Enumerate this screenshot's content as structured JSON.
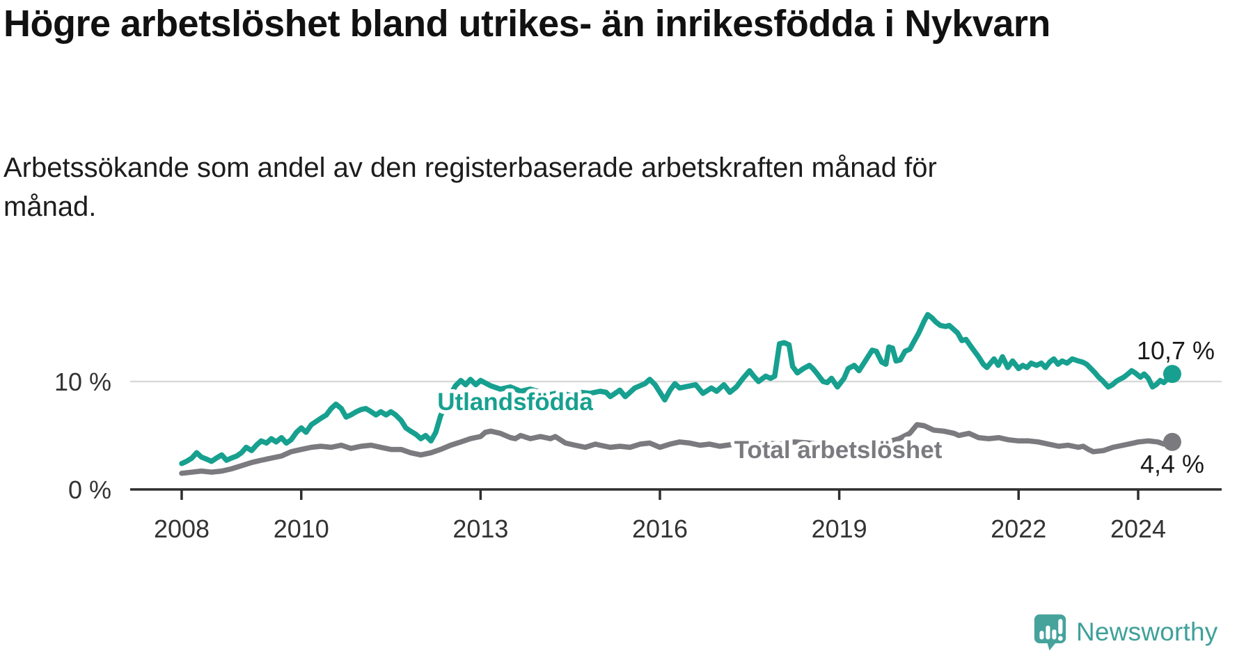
{
  "title": "Högre arbetslöshet bland utrikes- än inrikesfödda i Nykvarn",
  "subtitle": "Arbetssökande som andel av den registerbaserade arbetskraften månad för månad.",
  "branding": {
    "logo_text": "Newsworthy",
    "logo_color": "#3FA09A"
  },
  "colors": {
    "foreign_born_line": "#17A08F",
    "total_line": "#7A7A7F",
    "axis": "#2e2e2e",
    "gridline": "#d9d9d9",
    "text_dark": "#1a1a1a"
  },
  "chart_data": {
    "type": "line",
    "title": "Högre arbetslöshet bland utrikes- än inrikesfödda i Nykvarn",
    "subtitle": "Arbetssökande som andel av den registerbaserade arbetskraften månad för månad.",
    "xlabel": "",
    "ylabel": "",
    "x_range": [
      2007.9,
      2025.3
    ],
    "y_range": [
      0,
      18
    ],
    "grid": "single horizontal gridline at 10 %",
    "gridlines": [
      10
    ],
    "x_axis": {
      "ticks": [
        2008,
        2010,
        2013,
        2016,
        2019,
        2022,
        2024
      ]
    },
    "y_axis": {
      "ticks": [
        {
          "value": 0,
          "label": "0 %"
        },
        {
          "value": 10,
          "label": "10 %"
        }
      ]
    },
    "legend_position": "inline labels on lines",
    "series": [
      {
        "name": "Total arbetslöshet",
        "color": "#7A7A7F",
        "end_value": 4.4,
        "end_label": "4,4 %",
        "points": [
          [
            2008.0,
            1.5
          ],
          [
            2008.17,
            1.6
          ],
          [
            2008.33,
            1.7
          ],
          [
            2008.5,
            1.6
          ],
          [
            2008.67,
            1.7
          ],
          [
            2008.83,
            1.9
          ],
          [
            2009.0,
            2.2
          ],
          [
            2009.17,
            2.5
          ],
          [
            2009.33,
            2.7
          ],
          [
            2009.5,
            2.9
          ],
          [
            2009.67,
            3.1
          ],
          [
            2009.83,
            3.5
          ],
          [
            2010.0,
            3.7
          ],
          [
            2010.17,
            3.9
          ],
          [
            2010.33,
            4.0
          ],
          [
            2010.5,
            3.9
          ],
          [
            2010.67,
            4.1
          ],
          [
            2010.83,
            3.8
          ],
          [
            2011.0,
            4.0
          ],
          [
            2011.17,
            4.1
          ],
          [
            2011.33,
            3.9
          ],
          [
            2011.5,
            3.7
          ],
          [
            2011.67,
            3.7
          ],
          [
            2011.83,
            3.4
          ],
          [
            2012.0,
            3.2
          ],
          [
            2012.17,
            3.4
          ],
          [
            2012.33,
            3.7
          ],
          [
            2012.5,
            4.1
          ],
          [
            2012.67,
            4.4
          ],
          [
            2012.83,
            4.7
          ],
          [
            2013.0,
            4.9
          ],
          [
            2013.08,
            5.3
          ],
          [
            2013.17,
            5.4
          ],
          [
            2013.33,
            5.2
          ],
          [
            2013.5,
            4.8
          ],
          [
            2013.58,
            4.7
          ],
          [
            2013.67,
            5.0
          ],
          [
            2013.83,
            4.7
          ],
          [
            2014.0,
            4.9
          ],
          [
            2014.17,
            4.7
          ],
          [
            2014.25,
            4.9
          ],
          [
            2014.42,
            4.3
          ],
          [
            2014.58,
            4.1
          ],
          [
            2014.75,
            3.9
          ],
          [
            2014.92,
            4.2
          ],
          [
            2015.0,
            4.1
          ],
          [
            2015.17,
            3.9
          ],
          [
            2015.33,
            4.0
          ],
          [
            2015.5,
            3.9
          ],
          [
            2015.67,
            4.2
          ],
          [
            2015.83,
            4.3
          ],
          [
            2016.0,
            3.9
          ],
          [
            2016.17,
            4.2
          ],
          [
            2016.33,
            4.4
          ],
          [
            2016.5,
            4.3
          ],
          [
            2016.67,
            4.1
          ],
          [
            2016.83,
            4.2
          ],
          [
            2017.0,
            4.0
          ],
          [
            2017.25,
            4.2
          ],
          [
            2017.5,
            4.1
          ],
          [
            2017.75,
            4.3
          ],
          [
            2018.0,
            4.2
          ],
          [
            2018.25,
            4.4
          ],
          [
            2018.5,
            4.3
          ],
          [
            2018.75,
            4.1
          ],
          [
            2019.0,
            4.0
          ],
          [
            2019.25,
            4.2
          ],
          [
            2019.5,
            4.1
          ],
          [
            2019.75,
            4.3
          ],
          [
            2020.0,
            4.7
          ],
          [
            2020.18,
            5.2
          ],
          [
            2020.3,
            6.0
          ],
          [
            2020.42,
            5.9
          ],
          [
            2020.58,
            5.5
          ],
          [
            2020.75,
            5.4
          ],
          [
            2020.92,
            5.2
          ],
          [
            2021.0,
            5.0
          ],
          [
            2021.17,
            5.2
          ],
          [
            2021.33,
            4.8
          ],
          [
            2021.5,
            4.7
          ],
          [
            2021.67,
            4.8
          ],
          [
            2021.83,
            4.6
          ],
          [
            2022.0,
            4.5
          ],
          [
            2022.17,
            4.5
          ],
          [
            2022.33,
            4.4
          ],
          [
            2022.5,
            4.2
          ],
          [
            2022.67,
            4.0
          ],
          [
            2022.83,
            4.1
          ],
          [
            2023.0,
            3.9
          ],
          [
            2023.08,
            4.0
          ],
          [
            2023.17,
            3.7
          ],
          [
            2023.25,
            3.5
          ],
          [
            2023.42,
            3.6
          ],
          [
            2023.58,
            3.9
          ],
          [
            2023.75,
            4.1
          ],
          [
            2023.92,
            4.3
          ],
          [
            2024.0,
            4.4
          ],
          [
            2024.17,
            4.5
          ],
          [
            2024.33,
            4.4
          ],
          [
            2024.43,
            4.2
          ],
          [
            2024.57,
            4.4
          ]
        ]
      },
      {
        "name": "Utlandsfödda",
        "color": "#17A08F",
        "end_value": 10.7,
        "end_label": "10,7 %",
        "points": [
          [
            2008.0,
            2.4
          ],
          [
            2008.08,
            2.6
          ],
          [
            2008.17,
            2.9
          ],
          [
            2008.25,
            3.4
          ],
          [
            2008.33,
            3.0
          ],
          [
            2008.42,
            2.8
          ],
          [
            2008.5,
            2.6
          ],
          [
            2008.58,
            2.9
          ],
          [
            2008.67,
            3.2
          ],
          [
            2008.75,
            2.7
          ],
          [
            2008.83,
            2.9
          ],
          [
            2008.92,
            3.1
          ],
          [
            2009.0,
            3.4
          ],
          [
            2009.08,
            3.9
          ],
          [
            2009.17,
            3.6
          ],
          [
            2009.25,
            4.1
          ],
          [
            2009.33,
            4.5
          ],
          [
            2009.42,
            4.3
          ],
          [
            2009.5,
            4.7
          ],
          [
            2009.58,
            4.4
          ],
          [
            2009.67,
            4.8
          ],
          [
            2009.75,
            4.3
          ],
          [
            2009.83,
            4.6
          ],
          [
            2009.92,
            5.3
          ],
          [
            2010.0,
            5.7
          ],
          [
            2010.08,
            5.3
          ],
          [
            2010.17,
            6.0
          ],
          [
            2010.25,
            6.3
          ],
          [
            2010.33,
            6.6
          ],
          [
            2010.42,
            6.9
          ],
          [
            2010.5,
            7.5
          ],
          [
            2010.58,
            7.9
          ],
          [
            2010.67,
            7.5
          ],
          [
            2010.75,
            6.7
          ],
          [
            2010.83,
            6.9
          ],
          [
            2010.92,
            7.2
          ],
          [
            2011.0,
            7.4
          ],
          [
            2011.08,
            7.5
          ],
          [
            2011.17,
            7.2
          ],
          [
            2011.25,
            6.9
          ],
          [
            2011.33,
            7.2
          ],
          [
            2011.42,
            6.9
          ],
          [
            2011.5,
            7.2
          ],
          [
            2011.58,
            6.9
          ],
          [
            2011.67,
            6.4
          ],
          [
            2011.75,
            5.7
          ],
          [
            2011.83,
            5.4
          ],
          [
            2011.92,
            5.1
          ],
          [
            2012.0,
            4.7
          ],
          [
            2012.08,
            5.0
          ],
          [
            2012.17,
            4.5
          ],
          [
            2012.25,
            5.3
          ],
          [
            2012.33,
            6.8
          ],
          [
            2012.42,
            7.9
          ],
          [
            2012.5,
            8.8
          ],
          [
            2012.58,
            9.6
          ],
          [
            2012.67,
            10.1
          ],
          [
            2012.75,
            9.7
          ],
          [
            2012.83,
            10.2
          ],
          [
            2012.92,
            9.7
          ],
          [
            2013.0,
            10.1
          ],
          [
            2013.17,
            9.6
          ],
          [
            2013.33,
            9.3
          ],
          [
            2013.5,
            9.5
          ],
          [
            2013.67,
            9.1
          ],
          [
            2013.83,
            9.3
          ],
          [
            2014.0,
            9.0
          ],
          [
            2014.17,
            8.8
          ],
          [
            2014.33,
            9.0
          ],
          [
            2014.5,
            8.7
          ],
          [
            2014.67,
            9.0
          ],
          [
            2014.83,
            8.9
          ],
          [
            2015.0,
            9.1
          ],
          [
            2015.1,
            9.0
          ],
          [
            2015.17,
            8.6
          ],
          [
            2015.25,
            8.9
          ],
          [
            2015.33,
            9.2
          ],
          [
            2015.42,
            8.6
          ],
          [
            2015.5,
            9.0
          ],
          [
            2015.58,
            9.4
          ],
          [
            2015.75,
            9.8
          ],
          [
            2015.83,
            10.2
          ],
          [
            2015.92,
            9.7
          ],
          [
            2016.08,
            8.3
          ],
          [
            2016.17,
            9.2
          ],
          [
            2016.25,
            9.8
          ],
          [
            2016.33,
            9.4
          ],
          [
            2016.6,
            9.7
          ],
          [
            2016.72,
            8.9
          ],
          [
            2016.86,
            9.4
          ],
          [
            2016.95,
            9.1
          ],
          [
            2017.07,
            9.7
          ],
          [
            2017.17,
            9.0
          ],
          [
            2017.28,
            9.5
          ],
          [
            2017.39,
            10.3
          ],
          [
            2017.5,
            11.0
          ],
          [
            2017.57,
            10.5
          ],
          [
            2017.65,
            10.0
          ],
          [
            2017.77,
            10.5
          ],
          [
            2017.85,
            10.3
          ],
          [
            2017.92,
            10.5
          ],
          [
            2018.0,
            13.5
          ],
          [
            2018.08,
            13.6
          ],
          [
            2018.16,
            13.4
          ],
          [
            2018.22,
            11.4
          ],
          [
            2018.3,
            10.8
          ],
          [
            2018.4,
            11.2
          ],
          [
            2018.5,
            11.5
          ],
          [
            2018.56,
            11.2
          ],
          [
            2018.62,
            10.8
          ],
          [
            2018.73,
            10.0
          ],
          [
            2018.8,
            9.9
          ],
          [
            2018.87,
            10.3
          ],
          [
            2018.97,
            9.5
          ],
          [
            2019.08,
            10.3
          ],
          [
            2019.15,
            11.2
          ],
          [
            2019.25,
            11.5
          ],
          [
            2019.33,
            11.0
          ],
          [
            2019.4,
            11.6
          ],
          [
            2019.55,
            12.9
          ],
          [
            2019.62,
            12.8
          ],
          [
            2019.71,
            11.8
          ],
          [
            2019.78,
            11.6
          ],
          [
            2019.83,
            13.2
          ],
          [
            2019.89,
            13.1
          ],
          [
            2019.95,
            11.9
          ],
          [
            2020.02,
            12.0
          ],
          [
            2020.1,
            12.8
          ],
          [
            2020.18,
            13.0
          ],
          [
            2020.25,
            13.7
          ],
          [
            2020.33,
            14.5
          ],
          [
            2020.42,
            15.6
          ],
          [
            2020.48,
            16.2
          ],
          [
            2020.55,
            15.9
          ],
          [
            2020.62,
            15.5
          ],
          [
            2020.69,
            15.2
          ],
          [
            2020.78,
            15.1
          ],
          [
            2020.84,
            15.2
          ],
          [
            2020.92,
            14.8
          ],
          [
            2020.98,
            14.5
          ],
          [
            2021.05,
            13.8
          ],
          [
            2021.12,
            13.9
          ],
          [
            2021.21,
            13.2
          ],
          [
            2021.33,
            12.3
          ],
          [
            2021.41,
            11.6
          ],
          [
            2021.47,
            11.3
          ],
          [
            2021.59,
            12.1
          ],
          [
            2021.66,
            11.5
          ],
          [
            2021.73,
            12.3
          ],
          [
            2021.82,
            11.3
          ],
          [
            2021.9,
            11.9
          ],
          [
            2022.0,
            11.2
          ],
          [
            2022.07,
            11.5
          ],
          [
            2022.14,
            11.3
          ],
          [
            2022.21,
            11.7
          ],
          [
            2022.3,
            11.5
          ],
          [
            2022.38,
            11.7
          ],
          [
            2022.45,
            11.3
          ],
          [
            2022.52,
            11.8
          ],
          [
            2022.59,
            12.1
          ],
          [
            2022.66,
            11.6
          ],
          [
            2022.73,
            11.9
          ],
          [
            2022.81,
            11.7
          ],
          [
            2022.9,
            12.1
          ],
          [
            2023.0,
            11.9
          ],
          [
            2023.07,
            11.8
          ],
          [
            2023.14,
            11.6
          ],
          [
            2023.21,
            11.2
          ],
          [
            2023.28,
            10.8
          ],
          [
            2023.34,
            10.4
          ],
          [
            2023.4,
            10.1
          ],
          [
            2023.5,
            9.5
          ],
          [
            2023.57,
            9.7
          ],
          [
            2023.63,
            10.0
          ],
          [
            2023.69,
            10.2
          ],
          [
            2023.76,
            10.4
          ],
          [
            2023.83,
            10.7
          ],
          [
            2023.89,
            11.0
          ],
          [
            2023.95,
            10.8
          ],
          [
            2024.04,
            10.4
          ],
          [
            2024.1,
            10.7
          ],
          [
            2024.17,
            10.3
          ],
          [
            2024.24,
            9.5
          ],
          [
            2024.3,
            9.7
          ],
          [
            2024.37,
            10.1
          ],
          [
            2024.43,
            9.9
          ],
          [
            2024.5,
            10.3
          ],
          [
            2024.57,
            10.7
          ]
        ]
      }
    ]
  }
}
